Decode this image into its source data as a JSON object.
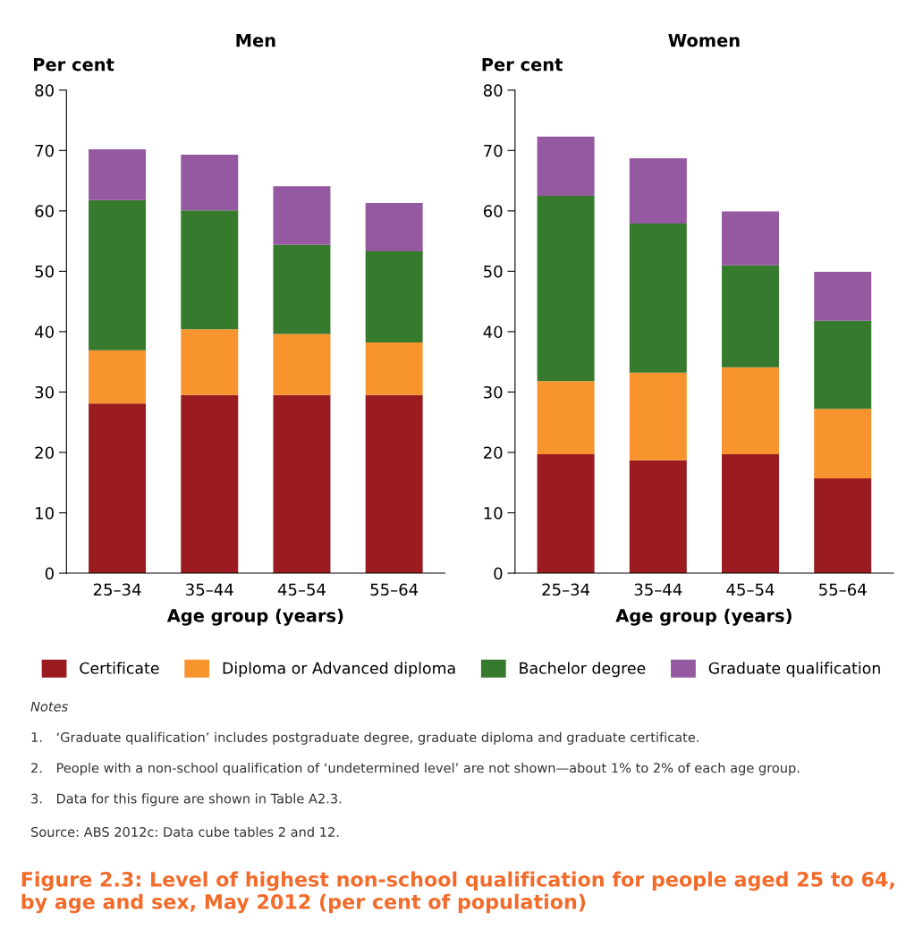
{
  "chart_data": [
    {
      "type": "bar",
      "stacked": true,
      "title": "Men",
      "ylabel": "Per cent",
      "xlabel": "Age group (years)",
      "categories": [
        "25–34",
        "35–44",
        "45–54",
        "55–64"
      ],
      "ylim": [
        0,
        80
      ],
      "yticks": [
        0,
        10,
        20,
        30,
        40,
        50,
        60,
        70,
        80
      ],
      "grid": false,
      "legend": "bottom",
      "series": [
        {
          "name": "Certificate",
          "color": "#9b1c20",
          "values": [
            28.1,
            29.5,
            29.5,
            29.5
          ]
        },
        {
          "name": "Diploma or Advanced diploma",
          "color": "#f7942d",
          "values": [
            8.8,
            10.9,
            10.1,
            8.7
          ]
        },
        {
          "name": "Bachelor degree",
          "color": "#357a2d",
          "values": [
            24.9,
            19.7,
            14.8,
            15.1
          ]
        },
        {
          "name": "Graduate qualification",
          "color": "#9459a1",
          "values": [
            8.4,
            9.2,
            9.7,
            8.0
          ]
        }
      ],
      "annotations": [
        "Notes",
        "1. ‘Graduate qualification’ includes postgraduate degree, graduate diploma and graduate certificate.",
        "2. People with a non-school qualification of ‘undetermined level’ are not shown—about 1% to 2% of each age group.",
        "3. Data for this figure are shown in Table A2.3.",
        "Source: ABS 2012c: Data cube tables 2 and 12.",
        "Figure 2.3: Level of highest non-school qualification for people aged 25 to 64, by age and sex, May 2012 (per cent of population)"
      ]
    },
    {
      "type": "bar",
      "stacked": true,
      "title": "Women",
      "ylabel": "Per cent",
      "xlabel": "Age group (years)",
      "categories": [
        "25–34",
        "35–44",
        "45–54",
        "55–64"
      ],
      "ylim": [
        0,
        80
      ],
      "yticks": [
        0,
        10,
        20,
        30,
        40,
        50,
        60,
        70,
        80
      ],
      "grid": false,
      "series": [
        {
          "color": "#9b1c20",
          "values": [
            19.7,
            18.7,
            19.7,
            15.7
          ]
        },
        {
          "color": "#f7942d",
          "values": [
            12.1,
            14.5,
            14.4,
            11.5
          ]
        },
        {
          "color": "#357a2d",
          "values": [
            30.7,
            24.7,
            16.9,
            14.6
          ]
        },
        {
          "color": "#9459a1",
          "values": [
            9.8,
            10.8,
            8.9,
            8.1
          ]
        }
      ]
    }
  ]
}
